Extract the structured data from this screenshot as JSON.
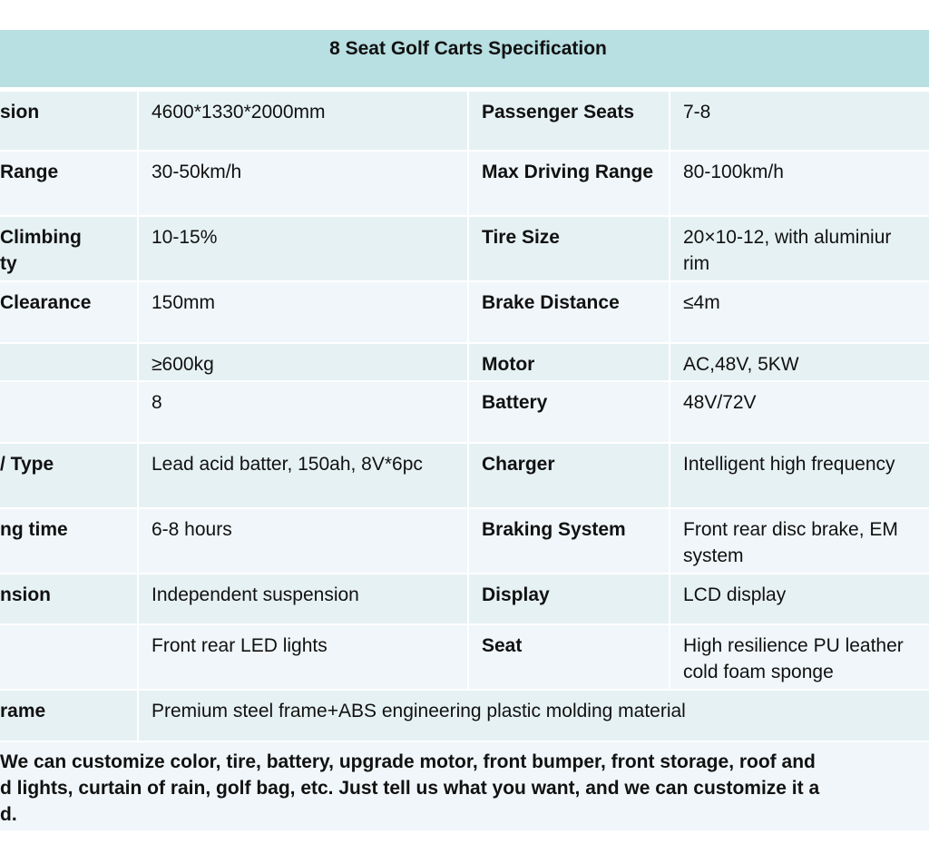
{
  "title": "8 Seat Golf Carts Specification",
  "rows": [
    {
      "l1": "sion",
      "v1": "4600*1330*2000mm",
      "l2": "Passenger Seats",
      "v2": "7-8"
    },
    {
      "l1": "Range",
      "v1": "30-50km/h",
      "l2": "Max Driving Range",
      "v2": "80-100km/h"
    },
    {
      "l1": "Climbing\nty",
      "v1": "10-15%",
      "l2": "Tire Size",
      "v2": "20×10-12, with aluminiur\nrim"
    },
    {
      "l1": "Clearance",
      "v1": "150mm",
      "l2": "Brake Distance",
      "v2": "≤4m"
    },
    {
      "l1": "",
      "v1": "≥600kg",
      "l2": "Motor",
      "v2": "AC,48V, 5KW"
    },
    {
      "l1": "",
      "v1": "8",
      "l2": "Battery",
      "v2": "48V/72V"
    },
    {
      "l1": "/ Type",
      "v1": "Lead acid batter, 150ah, 8V*6pc",
      "l2": "Charger",
      "v2": "Intelligent high frequency"
    },
    {
      "l1": "ng time",
      "v1": "6-8 hours",
      "l2": "Braking System",
      "v2": "Front rear disc brake, EM\nsystem"
    },
    {
      "l1": "nsion",
      "v1": "Independent suspension",
      "l2": "Display",
      "v2": "LCD display"
    },
    {
      "l1": "",
      "v1": "Front rear LED lights",
      "l2": "Seat",
      "v2": "High resilience PU leather\ncold foam sponge"
    }
  ],
  "frame": {
    "label": "rame",
    "value": "Premium steel frame+ABS engineering plastic molding material"
  },
  "note": [
    "We can customize color, tire, battery, upgrade motor, front bumper,  front storage, roof and",
    "d lights, curtain of rain, golf bag, etc. Just tell us what you want, and we can customize it a",
    "d."
  ]
}
